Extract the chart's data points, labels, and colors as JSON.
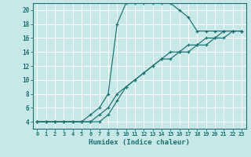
{
  "xlabel": "Humidex (Indice chaleur)",
  "ylabel": "",
  "bg_color": "#c8e8e8",
  "line_color": "#1a7070",
  "grid_color": "#ffffff",
  "xlim": [
    -0.5,
    23.5
  ],
  "ylim": [
    3,
    21
  ],
  "yticks": [
    4,
    6,
    8,
    10,
    12,
    14,
    16,
    18,
    20
  ],
  "xticks": [
    0,
    1,
    2,
    3,
    4,
    5,
    6,
    7,
    8,
    9,
    10,
    11,
    12,
    13,
    14,
    15,
    16,
    17,
    18,
    19,
    20,
    21,
    22,
    23
  ],
  "series": [
    {
      "x": [
        0,
        1,
        2,
        3,
        4,
        5,
        6,
        7,
        8,
        9,
        10,
        11,
        12,
        13,
        14,
        15,
        16,
        17,
        18,
        19,
        20,
        21,
        22,
        23
      ],
      "y": [
        4,
        4,
        4,
        4,
        4,
        4,
        5,
        6,
        8,
        18,
        21,
        21,
        21,
        21,
        21,
        21,
        20,
        19,
        17,
        17,
        17,
        17,
        17,
        17
      ]
    },
    {
      "x": [
        0,
        1,
        2,
        3,
        4,
        5,
        6,
        7,
        8,
        9,
        10,
        11,
        12,
        13,
        14,
        15,
        16,
        17,
        18,
        19,
        20,
        21,
        22,
        23
      ],
      "y": [
        4,
        4,
        4,
        4,
        4,
        4,
        4,
        5,
        6,
        8,
        9,
        10,
        11,
        12,
        13,
        14,
        14,
        15,
        15,
        16,
        16,
        17,
        17,
        17
      ]
    },
    {
      "x": [
        0,
        1,
        2,
        3,
        4,
        5,
        6,
        7,
        8,
        9,
        10,
        11,
        12,
        13,
        14,
        15,
        16,
        17,
        18,
        19,
        20,
        21,
        22,
        23
      ],
      "y": [
        4,
        4,
        4,
        4,
        4,
        4,
        4,
        4,
        5,
        7,
        9,
        10,
        11,
        12,
        13,
        13,
        14,
        14,
        15,
        15,
        16,
        16,
        17,
        17
      ]
    }
  ],
  "xlabel_fontsize": 6.5,
  "xlabel_color": "#1a7070",
  "tick_fontsize": 5,
  "tick_color": "#1a7070"
}
